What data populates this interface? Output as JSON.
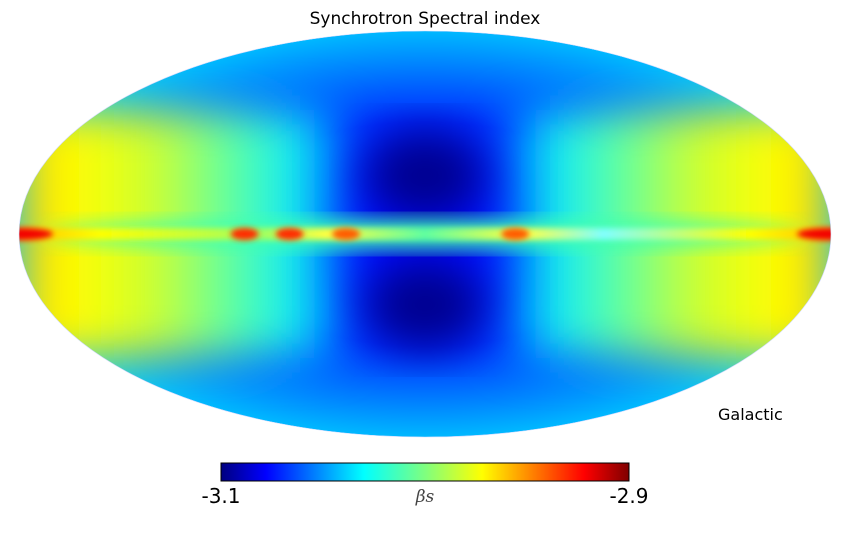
{
  "chart_data": {
    "type": "heatmap",
    "projection": "mollweide",
    "title": "Synchrotron Spectral index",
    "coord_label": "Galactic",
    "colormap": "jet",
    "colorbar": {
      "min_label": "-3.1",
      "max_label": "-2.9",
      "unit_label": "βs",
      "range": [
        -3.1,
        -2.9
      ],
      "orientation": "horizontal",
      "placement": "bottom"
    },
    "features": [
      {
        "region": "galactic-poles",
        "value": -3.1
      },
      {
        "region": "high-latitude-center",
        "value": -3.07
      },
      {
        "region": "mid-latitude-flanks",
        "value": -3.02
      },
      {
        "region": "galactic-plane-center",
        "value": -2.95
      },
      {
        "region": "galactic-plane-edges",
        "value": -2.93
      }
    ],
    "plane_hotspots": [
      {
        "longitude": 80,
        "value": -2.93
      },
      {
        "longitude": 60,
        "value": -2.93
      },
      {
        "longitude": 35,
        "value": -2.94
      },
      {
        "longitude": -40,
        "value": -2.94
      },
      {
        "longitude": 180,
        "value": -2.92
      },
      {
        "longitude": -180,
        "value": -2.92
      }
    ]
  }
}
